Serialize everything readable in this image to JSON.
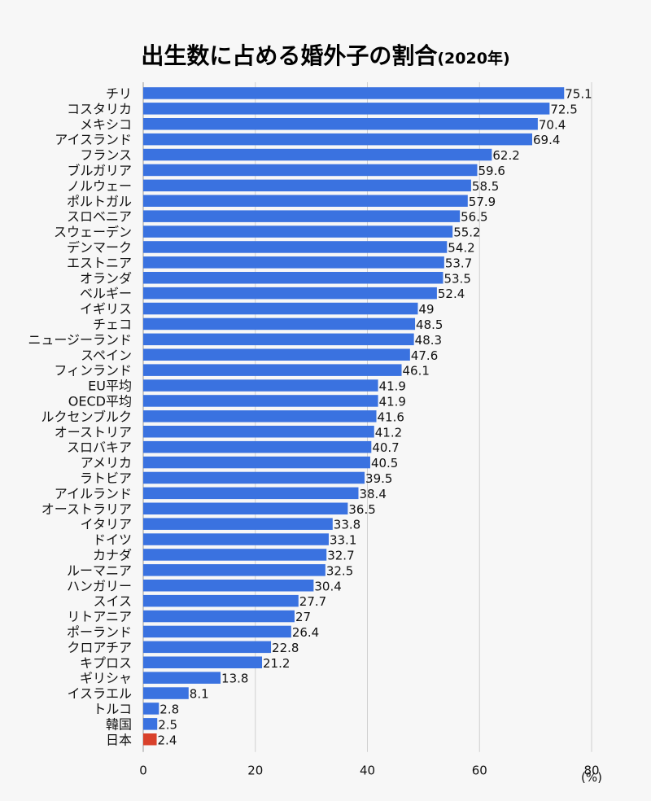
{
  "chart_data": {
    "type": "bar",
    "orientation": "horizontal",
    "title": "出生数に占める婚外子の割合",
    "subtitle": "(2020年)",
    "unit_label": "(%)",
    "categories": [
      "チリ",
      "コスタリカ",
      "メキシコ",
      "アイスランド",
      "フランス",
      "ブルガリア",
      "ノルウェー",
      "ポルトガル",
      "スロベニア",
      "スウェーデン",
      "デンマーク",
      "エストニア",
      "オランダ",
      "ベルギー",
      "イギリス",
      "チェコ",
      "ニュージーランド",
      "スペイン",
      "フィンランド",
      "EU平均",
      "OECD平均",
      "ルクセンブルク",
      "オーストリア",
      "スロバキア",
      "アメリカ",
      "ラトビア",
      "アイルランド",
      "オーストラリア",
      "イタリア",
      "ドイツ",
      "カナダ",
      "ルーマニア",
      "ハンガリー",
      "スイス",
      "リトアニア",
      "ポーランド",
      "クロアチア",
      "キプロス",
      "ギリシャ",
      "イスラエル",
      "トルコ",
      "韓国",
      "日本"
    ],
    "values": [
      75.1,
      72.5,
      70.4,
      69.4,
      62.2,
      59.6,
      58.5,
      57.9,
      56.5,
      55.2,
      54.2,
      53.7,
      53.5,
      52.4,
      49,
      48.5,
      48.3,
      47.6,
      46.1,
      41.9,
      41.9,
      41.6,
      41.2,
      40.7,
      40.5,
      39.5,
      38.4,
      36.5,
      33.8,
      33.1,
      32.7,
      32.5,
      30.4,
      27.7,
      27,
      26.4,
      22.8,
      21.2,
      13.8,
      8.1,
      2.8,
      2.5,
      2.4
    ],
    "value_labels": [
      "75.1",
      "72.5",
      "70.4",
      "69.4",
      "62.2",
      "59.6",
      "58.5",
      "57.9",
      "56.5",
      "55.2",
      "54.2",
      "53.7",
      "53.5",
      "52.4",
      "49",
      "48.5",
      "48.3",
      "47.6",
      "46.1",
      "41.9",
      "41.9",
      "41.6",
      "41.2",
      "40.7",
      "40.5",
      "39.5",
      "38.4",
      "36.5",
      "33.8",
      "33.1",
      "32.7",
      "32.5",
      "30.4",
      "27.7",
      "27",
      "26.4",
      "22.8",
      "21.2",
      "13.8",
      "8.1",
      "2.8",
      "2.5",
      "2.4"
    ],
    "highlight_category": "日本",
    "xlim": [
      0,
      80
    ],
    "xticks": [
      0,
      20,
      40,
      60,
      80
    ],
    "xtick_labels": [
      "0",
      "20",
      "40",
      "60",
      "80"
    ],
    "grid": true,
    "colors": {
      "bar": "#3a72e0",
      "highlight": "#d9412b",
      "background": "#f7f7f7",
      "grid": "#cfcfcf"
    }
  }
}
